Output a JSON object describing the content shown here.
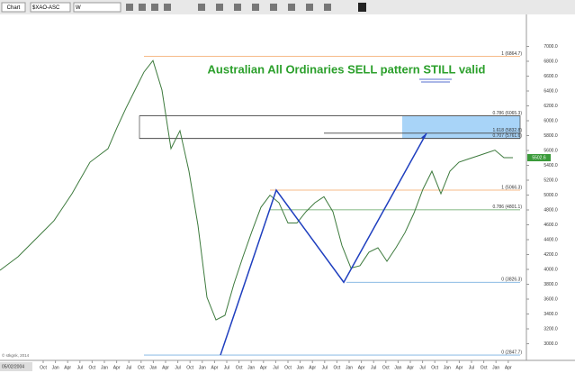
{
  "ui": {
    "tab": "Chart",
    "symbol": "$XAO-ASC",
    "interval": "W",
    "date": "05/02/2004",
    "copyright": "© stkgnk, 2014"
  },
  "chart_data": {
    "type": "line",
    "title": "Australian All Ordinaries SELL pattern STILL valid",
    "title_color": "#2ca02c",
    "series": [
      {
        "name": "$XAO-ASC",
        "color": "#3d7a3d",
        "values": [
          3988,
          4079,
          4170,
          4291,
          4412,
          4533,
          4655,
          4836,
          5018,
          5230,
          5442,
          5533,
          5624,
          5907,
          6169,
          6412,
          6655,
          6810,
          6412,
          5624,
          5866,
          5321,
          4594,
          3624,
          3321,
          3382,
          3806,
          4170,
          4513,
          4836,
          4998,
          4897,
          4624,
          4624,
          4776,
          4897,
          4978,
          4776,
          4321,
          4018,
          4049,
          4231,
          4291,
          4109,
          4291,
          4493,
          4756,
          5079,
          5321,
          5018,
          5321,
          5442,
          5483,
          5523,
          5564,
          5604,
          5503,
          5503
        ]
      }
    ],
    "last_label": "5502.6",
    "levels": [
      {
        "label": "1 (6864.7)",
        "value": 6864.7,
        "color": "#f4a460"
      },
      {
        "label": "0.786 (6065.3)",
        "value": 6065.3,
        "color": "#444444"
      },
      {
        "label": "1.618 (5832.8)",
        "value": 5832.8,
        "color": "#444444"
      },
      {
        "label": "0.707 (5761.6)",
        "value": 5761.6,
        "color": "#444444"
      },
      {
        "label": "1 (5066.3)",
        "value": 5066.3,
        "color": "#f4a460"
      },
      {
        "label": "0.786 (4801.1)",
        "value": 4801.1,
        "color": "#5aa05a"
      },
      {
        "label": "0 (3826.3)",
        "value": 3826.3,
        "color": "#7ab0e0"
      },
      {
        "label": "0 (2847.7)",
        "value": 2847.7,
        "color": "#7ab0e0"
      }
    ],
    "pattern_color": "#1f3fbf",
    "zone_color": "#a8d4f8",
    "x_axis_labels": [
      "Oct",
      "Jan",
      "Apr",
      "Jul",
      "Oct",
      "Jan",
      "Apr",
      "Jul",
      "Oct",
      "Jan",
      "Apr",
      "Jul",
      "Oct",
      "Jan",
      "Apr",
      "Jul",
      "Oct",
      "Jan",
      "Apr",
      "Jul",
      "Oct",
      "Jan",
      "Apr",
      "Jul",
      "Oct",
      "Jan",
      "Apr",
      "Jul",
      "Oct",
      "Jan",
      "Apr",
      "Jul",
      "Oct",
      "Jan",
      "Apr",
      "Jul",
      "Oct",
      "Jan",
      "Apr"
    ],
    "ylim": [
      2800,
      7200
    ],
    "yticks": [
      {
        "value": 3000,
        "label": "3000.0"
      },
      {
        "value": 3200,
        "label": "3200.0"
      },
      {
        "value": 3400,
        "label": "3400.0"
      },
      {
        "value": 3600,
        "label": "3600.0"
      },
      {
        "value": 3800,
        "label": "3800.0"
      },
      {
        "value": 4000,
        "label": "4000.0"
      },
      {
        "value": 4200,
        "label": "4200.0"
      },
      {
        "value": 4400,
        "label": "4400.0"
      },
      {
        "value": 4600,
        "label": "4600.0"
      },
      {
        "value": 4800,
        "label": "4800.0"
      },
      {
        "value": 5000,
        "label": "5000.0"
      },
      {
        "value": 5200,
        "label": "5200.0"
      },
      {
        "value": 5400,
        "label": "5400.0"
      },
      {
        "value": 5600,
        "label": "5600.0"
      },
      {
        "value": 5800,
        "label": "5800.0"
      },
      {
        "value": 6000,
        "label": "6000.0"
      },
      {
        "value": 6200,
        "label": "6200.0"
      },
      {
        "value": 6400,
        "label": "6400.0"
      },
      {
        "value": 6600,
        "label": "6600.0"
      },
      {
        "value": 6800,
        "label": "6800.0"
      },
      {
        "value": 7000,
        "label": "7000.0"
      }
    ]
  }
}
